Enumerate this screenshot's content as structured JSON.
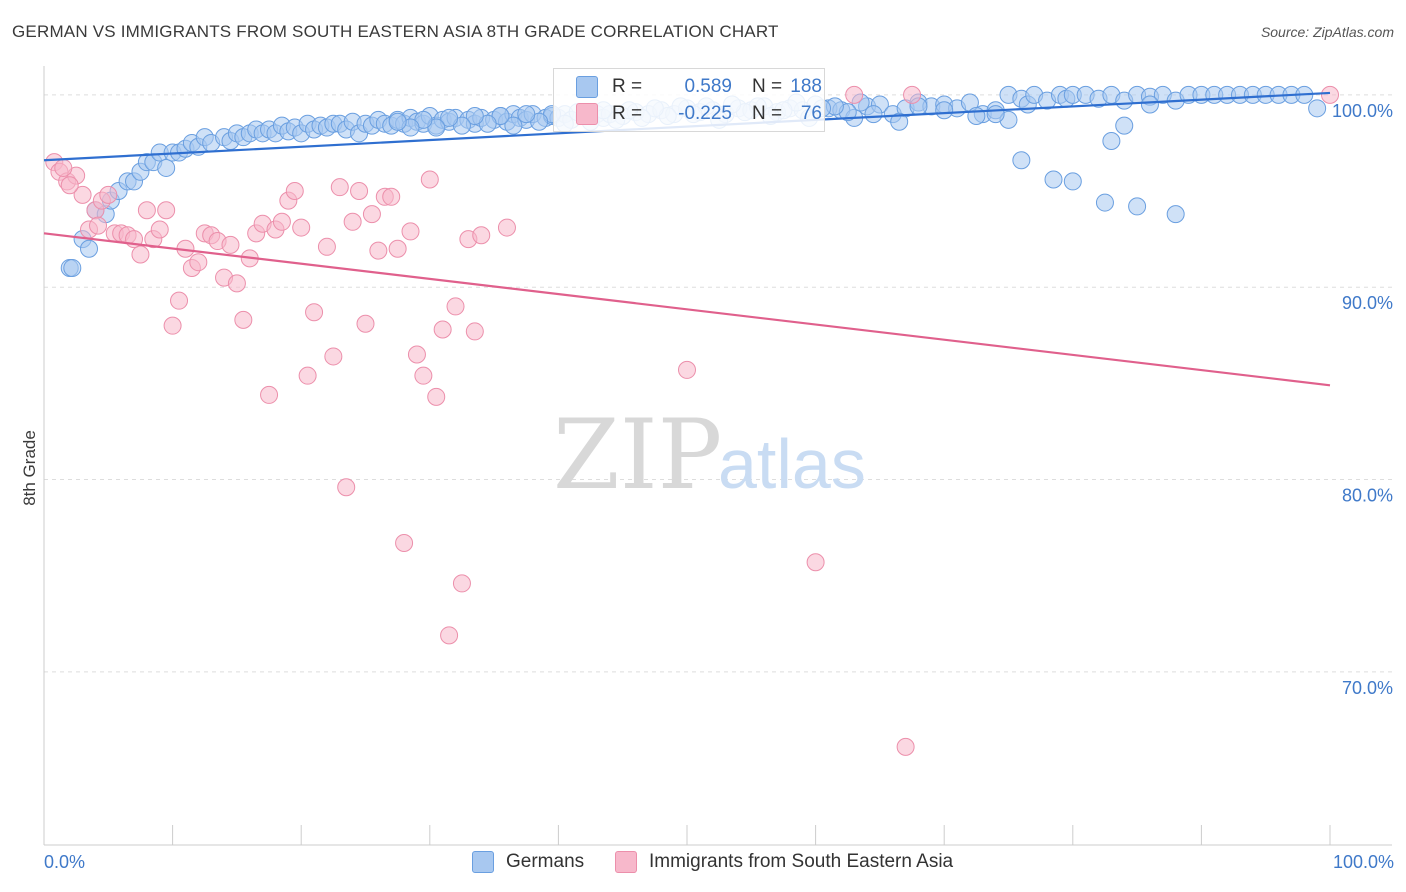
{
  "title": "GERMAN VS IMMIGRANTS FROM SOUTH EASTERN ASIA 8TH GRADE CORRELATION CHART",
  "source": "Source: ZipAtlas.com",
  "watermark": {
    "zip": "ZIP",
    "atlas": "atlas"
  },
  "colors": {
    "blue_fill": "#a8c8f0",
    "blue_stroke": "#6a9fe0",
    "blue_line": "#2f6fd0",
    "pink_fill": "#f7b8cb",
    "pink_stroke": "#ec8fab",
    "pink_line": "#e0608c",
    "accent_text": "#3f79c9",
    "grid": "#dddddd"
  },
  "legend": {
    "rows": [
      {
        "r_label": "R =",
        "r_value": "0.589",
        "n_label": "N =",
        "n_value": "188",
        "color": "blue"
      },
      {
        "r_label": "R =",
        "r_value": "-0.225",
        "n_label": "N =",
        "n_value": "76",
        "color": "pink"
      }
    ]
  },
  "bottom_legend": [
    "Germans",
    "Immigrants from South Eastern Asia"
  ],
  "chart_data": {
    "type": "scatter",
    "ylabel": "8th Grade",
    "xlabel": "",
    "xlim": [
      0,
      100
    ],
    "ylim": [
      61,
      101.5
    ],
    "x_tick_labels": [
      "0.0%",
      "100.0%"
    ],
    "y_ticks": [
      70,
      80,
      90,
      100
    ],
    "y_tick_labels": [
      "70.0%",
      "80.0%",
      "90.0%",
      "100.0%"
    ],
    "grid": true,
    "legend_position": "top-center",
    "series": [
      {
        "name": "Germans",
        "color": "blue",
        "trend": {
          "x": [
            0,
            100
          ],
          "y": [
            96.6,
            100.1
          ]
        },
        "points": [
          [
            2.0,
            91.0
          ],
          [
            2.2,
            91.0
          ],
          [
            3.0,
            92.5
          ],
          [
            3.5,
            92.0
          ],
          [
            4.0,
            94.0
          ],
          [
            4.8,
            93.8
          ],
          [
            5.2,
            94.5
          ],
          [
            5.8,
            95.0
          ],
          [
            6.5,
            95.5
          ],
          [
            7.0,
            95.5
          ],
          [
            7.5,
            96.0
          ],
          [
            8.0,
            96.5
          ],
          [
            8.5,
            96.5
          ],
          [
            9.0,
            97.0
          ],
          [
            9.5,
            96.2
          ],
          [
            10.0,
            97.0
          ],
          [
            10.5,
            97.0
          ],
          [
            11.0,
            97.2
          ],
          [
            11.5,
            97.5
          ],
          [
            12.0,
            97.3
          ],
          [
            12.5,
            97.8
          ],
          [
            13.0,
            97.5
          ],
          [
            14.0,
            97.8
          ],
          [
            14.5,
            97.6
          ],
          [
            15.0,
            98.0
          ],
          [
            15.5,
            97.8
          ],
          [
            16.0,
            98.0
          ],
          [
            16.5,
            98.2
          ],
          [
            17.0,
            98.0
          ],
          [
            17.5,
            98.2
          ],
          [
            18.0,
            98.0
          ],
          [
            18.5,
            98.4
          ],
          [
            19.0,
            98.1
          ],
          [
            19.5,
            98.3
          ],
          [
            20.0,
            98.0
          ],
          [
            20.5,
            98.5
          ],
          [
            21.0,
            98.2
          ],
          [
            21.5,
            98.4
          ],
          [
            22.0,
            98.3
          ],
          [
            22.5,
            98.5
          ],
          [
            23.0,
            98.5
          ],
          [
            23.5,
            98.2
          ],
          [
            24.0,
            98.6
          ],
          [
            24.5,
            98.0
          ],
          [
            25.0,
            98.5
          ],
          [
            25.5,
            98.4
          ],
          [
            26.0,
            98.7
          ],
          [
            26.5,
            98.5
          ],
          [
            27.0,
            98.4
          ],
          [
            27.5,
            98.7
          ],
          [
            28.0,
            98.5
          ],
          [
            28.5,
            98.8
          ],
          [
            29.0,
            98.6
          ],
          [
            29.5,
            98.5
          ],
          [
            30.0,
            98.9
          ],
          [
            30.5,
            98.4
          ],
          [
            31.0,
            98.7
          ],
          [
            31.5,
            98.6
          ],
          [
            32.0,
            98.8
          ],
          [
            33.0,
            98.7
          ],
          [
            33.5,
            98.5
          ],
          [
            34.0,
            98.8
          ],
          [
            35.0,
            98.7
          ],
          [
            35.5,
            98.9
          ],
          [
            36.0,
            98.6
          ],
          [
            36.5,
            99.0
          ],
          [
            37.0,
            98.8
          ],
          [
            37.5,
            98.7
          ],
          [
            38.0,
            99.0
          ],
          [
            39.0,
            98.8
          ],
          [
            39.5,
            98.9
          ],
          [
            40.0,
            98.8
          ],
          [
            40.5,
            99.0
          ],
          [
            41.0,
            98.7
          ],
          [
            42.0,
            98.9
          ],
          [
            43.0,
            99.0
          ],
          [
            43.5,
            98.8
          ],
          [
            44.0,
            99.0
          ],
          [
            45.0,
            98.9
          ],
          [
            46.0,
            99.1
          ],
          [
            47.0,
            99.0
          ],
          [
            48.0,
            99.2
          ],
          [
            49.0,
            99.0
          ],
          [
            50.0,
            99.3
          ],
          [
            51.0,
            99.1
          ],
          [
            52.0,
            99.2
          ],
          [
            53.0,
            99.0
          ],
          [
            54.0,
            99.3
          ],
          [
            55.0,
            99.2
          ],
          [
            56.0,
            99.4
          ],
          [
            57.0,
            99.1
          ],
          [
            58.0,
            99.3
          ],
          [
            59.0,
            99.2
          ],
          [
            60.0,
            99.5
          ],
          [
            61.0,
            99.3
          ],
          [
            62.0,
            99.2
          ],
          [
            63.0,
            98.8
          ],
          [
            64.0,
            99.4
          ],
          [
            65.0,
            99.5
          ],
          [
            66.0,
            99.0
          ],
          [
            67.0,
            99.3
          ],
          [
            68.0,
            99.6
          ],
          [
            69.0,
            99.4
          ],
          [
            70.0,
            99.5
          ],
          [
            71.0,
            99.3
          ],
          [
            72.0,
            99.6
          ],
          [
            73.0,
            99.0
          ],
          [
            74.0,
            99.2
          ],
          [
            75.0,
            100.0
          ],
          [
            76.0,
            99.8
          ],
          [
            76.5,
            99.5
          ],
          [
            77.0,
            100.0
          ],
          [
            78.0,
            99.7
          ],
          [
            79.0,
            100.0
          ],
          [
            79.5,
            99.8
          ],
          [
            80.0,
            100.0
          ],
          [
            81.0,
            100.0
          ],
          [
            82.0,
            99.8
          ],
          [
            83.0,
            100.0
          ],
          [
            84.0,
            99.7
          ],
          [
            85.0,
            100.0
          ],
          [
            86.0,
            99.9
          ],
          [
            87.0,
            100.0
          ],
          [
            88.0,
            99.7
          ],
          [
            89.0,
            100.0
          ],
          [
            90.0,
            100.0
          ],
          [
            91.0,
            100.0
          ],
          [
            92.0,
            100.0
          ],
          [
            93.0,
            100.0
          ],
          [
            94.0,
            100.0
          ],
          [
            95.0,
            100.0
          ],
          [
            96.0,
            100.0
          ],
          [
            97.0,
            100.0
          ],
          [
            98.0,
            100.0
          ],
          [
            99.0,
            99.3
          ],
          [
            76.0,
            96.6
          ],
          [
            78.5,
            95.6
          ],
          [
            80.0,
            95.5
          ],
          [
            82.5,
            94.4
          ],
          [
            83.0,
            97.6
          ],
          [
            84.0,
            98.4
          ],
          [
            85.0,
            94.2
          ],
          [
            86.0,
            99.5
          ],
          [
            88.0,
            93.8
          ],
          [
            75.0,
            98.7
          ],
          [
            74.0,
            99.0
          ],
          [
            72.5,
            98.9
          ],
          [
            70.0,
            99.2
          ],
          [
            68.0,
            99.4
          ],
          [
            66.5,
            98.6
          ],
          [
            64.5,
            99.0
          ],
          [
            63.5,
            99.6
          ],
          [
            62.5,
            99.1
          ],
          [
            61.5,
            99.4
          ],
          [
            60.5,
            99.3
          ],
          [
            59.5,
            98.8
          ],
          [
            58.5,
            99.6
          ],
          [
            57.5,
            99.2
          ],
          [
            56.5,
            98.9
          ],
          [
            55.5,
            99.4
          ],
          [
            54.5,
            99.1
          ],
          [
            53.5,
            99.5
          ],
          [
            52.5,
            98.7
          ],
          [
            51.5,
            99.4
          ],
          [
            50.5,
            99.0
          ],
          [
            49.5,
            99.4
          ],
          [
            48.5,
            98.9
          ],
          [
            47.5,
            99.3
          ],
          [
            46.5,
            98.8
          ],
          [
            45.5,
            99.2
          ],
          [
            44.5,
            98.7
          ],
          [
            43.5,
            99.2
          ],
          [
            42.5,
            98.6
          ],
          [
            41.5,
            99.1
          ],
          [
            40.5,
            98.5
          ],
          [
            39.5,
            99.0
          ],
          [
            38.5,
            98.6
          ],
          [
            37.5,
            99.0
          ],
          [
            36.5,
            98.4
          ],
          [
            35.5,
            98.9
          ],
          [
            34.5,
            98.5
          ],
          [
            33.5,
            98.9
          ],
          [
            32.5,
            98.4
          ],
          [
            31.5,
            98.8
          ],
          [
            30.5,
            98.3
          ],
          [
            29.5,
            98.7
          ],
          [
            28.5,
            98.3
          ],
          [
            27.5,
            98.6
          ]
        ]
      },
      {
        "name": "Immigrants from South Eastern Asia",
        "color": "pink",
        "trend": {
          "x": [
            0,
            100
          ],
          "y": [
            92.8,
            84.9
          ]
        },
        "points": [
          [
            0.8,
            96.5
          ],
          [
            1.2,
            96.0
          ],
          [
            1.8,
            95.5
          ],
          [
            2.5,
            95.8
          ],
          [
            3.0,
            94.8
          ],
          [
            3.5,
            93.0
          ],
          [
            4.0,
            94.0
          ],
          [
            4.5,
            94.5
          ],
          [
            5.0,
            94.8
          ],
          [
            5.5,
            92.8
          ],
          [
            6.0,
            92.8
          ],
          [
            6.5,
            92.7
          ],
          [
            7.0,
            92.5
          ],
          [
            7.5,
            91.7
          ],
          [
            8.0,
            94.0
          ],
          [
            8.5,
            92.5
          ],
          [
            9.0,
            93.0
          ],
          [
            9.5,
            94.0
          ],
          [
            10.0,
            88.0
          ],
          [
            10.5,
            89.3
          ],
          [
            11.0,
            92.0
          ],
          [
            11.5,
            91.0
          ],
          [
            12.0,
            91.3
          ],
          [
            12.5,
            92.8
          ],
          [
            13.0,
            92.7
          ],
          [
            13.5,
            92.4
          ],
          [
            14.0,
            90.5
          ],
          [
            14.5,
            92.2
          ],
          [
            15.0,
            90.2
          ],
          [
            15.5,
            88.3
          ],
          [
            16.0,
            91.5
          ],
          [
            16.5,
            92.8
          ],
          [
            17.0,
            93.3
          ],
          [
            17.5,
            84.4
          ],
          [
            18.0,
            93.0
          ],
          [
            18.5,
            93.4
          ],
          [
            19.0,
            94.5
          ],
          [
            19.5,
            95.0
          ],
          [
            20.0,
            93.1
          ],
          [
            20.5,
            85.4
          ],
          [
            21.0,
            88.7
          ],
          [
            22.0,
            92.1
          ],
          [
            22.5,
            86.4
          ],
          [
            23.0,
            95.2
          ],
          [
            23.5,
            79.6
          ],
          [
            24.0,
            93.4
          ],
          [
            24.5,
            95.0
          ],
          [
            25.0,
            88.1
          ],
          [
            25.5,
            93.8
          ],
          [
            26.0,
            91.9
          ],
          [
            26.5,
            94.7
          ],
          [
            27.0,
            94.7
          ],
          [
            27.5,
            92.0
          ],
          [
            28.0,
            76.7
          ],
          [
            28.5,
            92.9
          ],
          [
            29.0,
            86.5
          ],
          [
            29.5,
            85.4
          ],
          [
            30.0,
            95.6
          ],
          [
            30.5,
            84.3
          ],
          [
            31.0,
            87.8
          ],
          [
            31.5,
            71.9
          ],
          [
            32.0,
            89.0
          ],
          [
            32.5,
            74.6
          ],
          [
            33.0,
            92.5
          ],
          [
            33.5,
            87.7
          ],
          [
            34.0,
            92.7
          ],
          [
            36.0,
            93.1
          ],
          [
            50.0,
            85.7
          ],
          [
            60.0,
            75.7
          ],
          [
            63.0,
            100.0
          ],
          [
            67.0,
            66.1
          ],
          [
            67.5,
            100.0
          ],
          [
            100.0,
            100.0
          ],
          [
            1.5,
            96.2
          ],
          [
            2.0,
            95.3
          ],
          [
            4.2,
            93.2
          ]
        ]
      }
    ]
  }
}
